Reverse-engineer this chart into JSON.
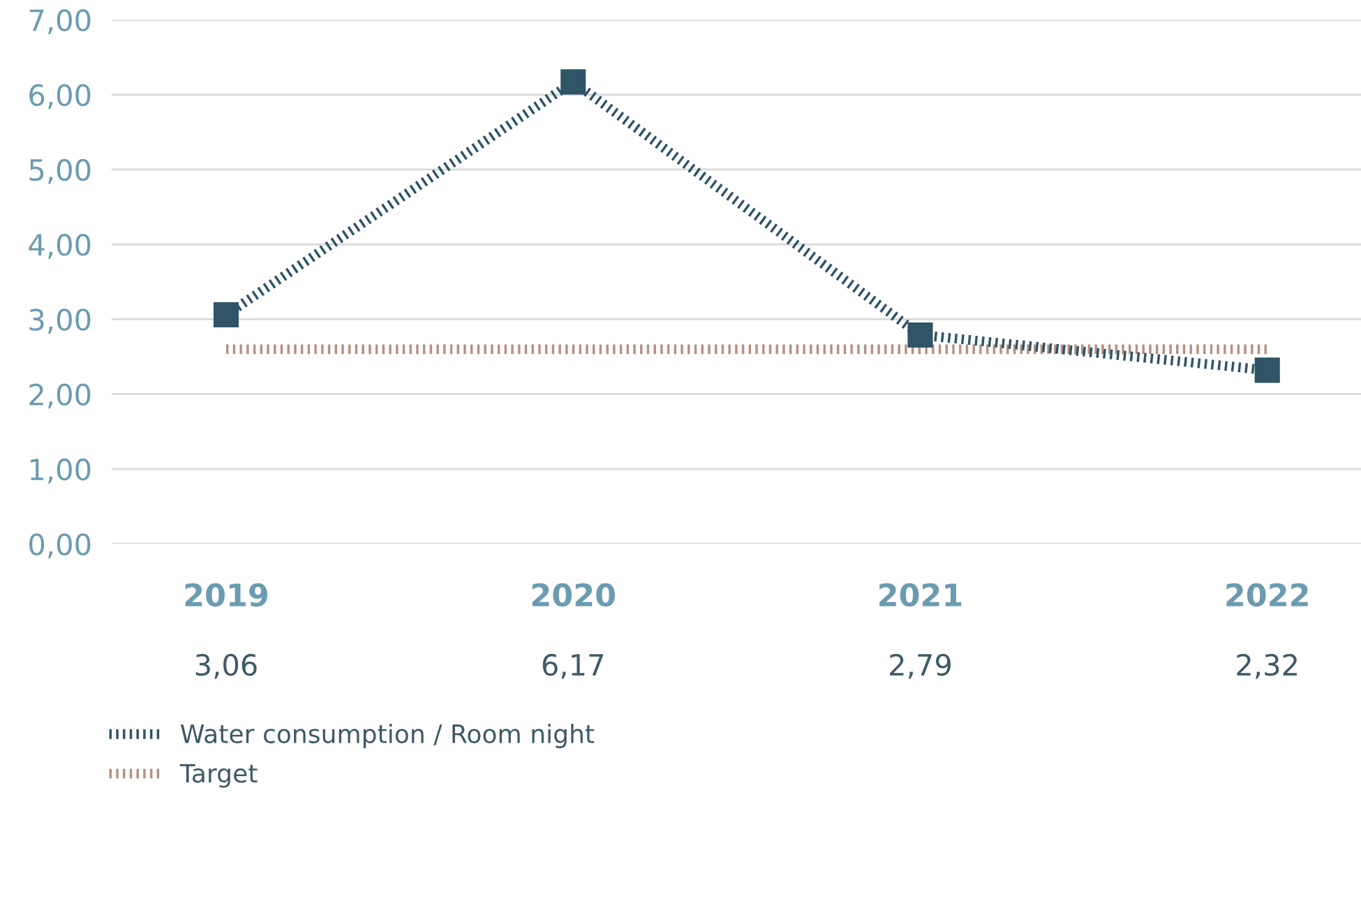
{
  "chart_data": {
    "type": "line",
    "categories": [
      "2019",
      "2020",
      "2021",
      "2022"
    ],
    "series": [
      {
        "name": "Water consumption / Room night",
        "color": "#2f5566",
        "values": [
          3.06,
          6.17,
          2.79,
          2.32
        ],
        "marker": "square",
        "value_labels": [
          "3,06",
          "6,17",
          "2,79",
          "2,32"
        ]
      },
      {
        "name": "Target",
        "color": "#b8907f",
        "values": [
          2.6,
          2.6,
          2.6,
          2.6
        ],
        "marker": "none"
      }
    ],
    "ylim": [
      0,
      7
    ],
    "yticks": [
      {
        "value": 0,
        "label": "0,00"
      },
      {
        "value": 1,
        "label": "1,00"
      },
      {
        "value": 2,
        "label": "2,00"
      },
      {
        "value": 3,
        "label": "3,00"
      },
      {
        "value": 4,
        "label": "4,00"
      },
      {
        "value": 5,
        "label": "5,00"
      },
      {
        "value": 6,
        "label": "6,00"
      },
      {
        "value": 7,
        "label": "7,00"
      }
    ],
    "grid": "y",
    "legend": "bottom",
    "line_style": "dotted"
  }
}
